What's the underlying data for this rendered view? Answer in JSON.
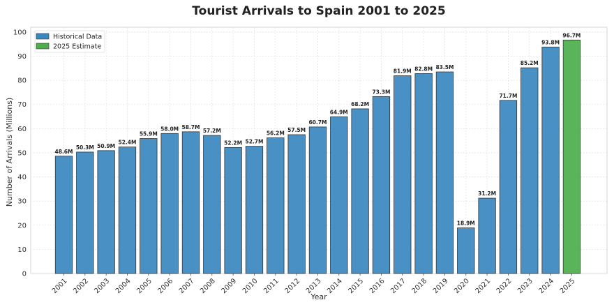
{
  "chart_data": {
    "type": "bar",
    "title": "Tourist Arrivals to Spain 2001 to 2025",
    "xlabel": "Year",
    "ylabel": "Number of Arrivals (Millions)",
    "ylim": [
      0,
      102
    ],
    "yticks": [
      0,
      10,
      20,
      30,
      40,
      50,
      60,
      70,
      80,
      90,
      100
    ],
    "grid": true,
    "legend_placement": "top-left",
    "categories": [
      "2001",
      "2002",
      "2003",
      "2004",
      "2005",
      "2006",
      "2007",
      "2008",
      "2009",
      "2010",
      "2011",
      "2012",
      "2013",
      "2014",
      "2015",
      "2016",
      "2017",
      "2018",
      "2019",
      "2020",
      "2021",
      "2022",
      "2023",
      "2024",
      "2025"
    ],
    "series": [
      {
        "name": "Historical Data",
        "color": "#3a87c0",
        "values": [
          48.6,
          50.3,
          50.9,
          52.4,
          55.9,
          58.0,
          58.7,
          57.2,
          52.2,
          52.7,
          56.2,
          57.5,
          60.7,
          64.9,
          68.2,
          73.3,
          81.9,
          82.8,
          83.5,
          18.9,
          31.2,
          71.7,
          85.2,
          93.8,
          null
        ]
      },
      {
        "name": "2025 Estimate",
        "color": "#4cae4c",
        "values": [
          null,
          null,
          null,
          null,
          null,
          null,
          null,
          null,
          null,
          null,
          null,
          null,
          null,
          null,
          null,
          null,
          null,
          null,
          null,
          null,
          null,
          null,
          null,
          null,
          96.7
        ]
      }
    ],
    "data_labels": [
      "48.6M",
      "50.3M",
      "50.9M",
      "52.4M",
      "55.9M",
      "58.0M",
      "58.7M",
      "57.2M",
      "52.2M",
      "52.7M",
      "56.2M",
      "57.5M",
      "60.7M",
      "64.9M",
      "68.2M",
      "73.3M",
      "81.9M",
      "82.8M",
      "83.5M",
      "18.9M",
      "31.2M",
      "71.7M",
      "85.2M",
      "93.8M",
      "96.7M"
    ]
  }
}
